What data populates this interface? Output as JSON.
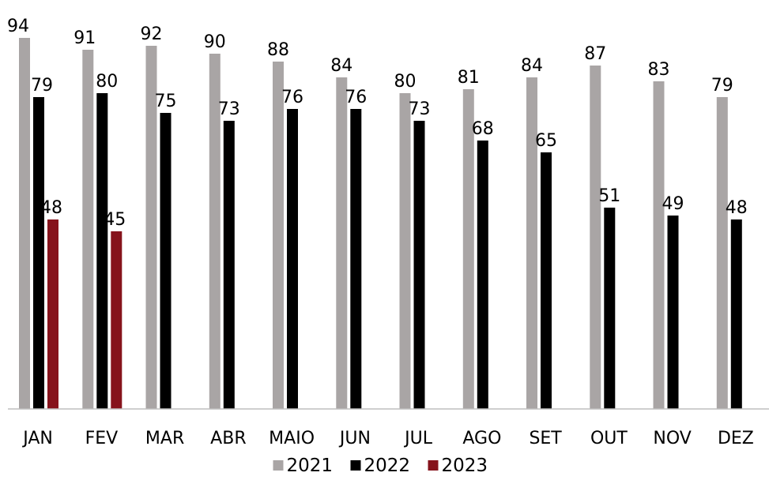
{
  "chart_data": {
    "type": "bar",
    "title": "",
    "xlabel": "",
    "ylabel": "",
    "ylim": [
      0,
      94
    ],
    "grid": false,
    "legend_position": "bottom",
    "categories": [
      "JAN",
      "FEV",
      "MAR",
      "ABR",
      "MAIO",
      "JUN",
      "JUL",
      "AGO",
      "SET",
      "OUT",
      "NOV",
      "DEZ"
    ],
    "series": [
      {
        "name": "2021",
        "color": "#a9a5a5",
        "values": [
          94,
          91,
          92,
          90,
          88,
          84,
          80,
          81,
          84,
          87,
          83,
          79
        ]
      },
      {
        "name": "2022",
        "color": "#000000",
        "values": [
          79,
          80,
          75,
          73,
          76,
          76,
          73,
          68,
          65,
          51,
          49,
          48
        ]
      },
      {
        "name": "2023",
        "color": "#86131c",
        "values": [
          48,
          45,
          null,
          null,
          null,
          null,
          null,
          null,
          null,
          null,
          null,
          null
        ]
      }
    ]
  }
}
